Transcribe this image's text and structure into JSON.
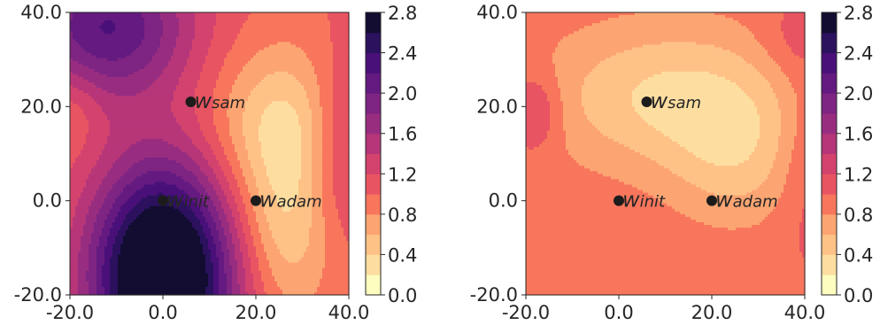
{
  "chart_data": [
    {
      "type": "contour",
      "title": "",
      "xlabel": "",
      "ylabel": "",
      "xlim": [
        -20,
        40
      ],
      "ylim": [
        -20,
        40
      ],
      "x_ticks": [
        "-20.0",
        "0.0",
        "20.0",
        "40.0"
      ],
      "y_ticks": [
        "-20.0",
        "0.0",
        "20.0",
        "40.0"
      ],
      "colormap": "magma_r",
      "colorbar": {
        "range": [
          0.0,
          2.8
        ],
        "levels": [
          0.0,
          0.2,
          0.4,
          0.6,
          0.8,
          1.0,
          1.2,
          1.4,
          1.6,
          1.8,
          2.0,
          2.2,
          2.4,
          2.6,
          2.8
        ],
        "tick_labels": [
          "0.0",
          "0.4",
          "0.8",
          "1.2",
          "1.6",
          "2.0",
          "2.4",
          "2.8"
        ]
      },
      "points": [
        {
          "label": "w",
          "subscript": "sam",
          "x": 6,
          "y": 21
        },
        {
          "label": "w",
          "subscript": "init",
          "x": 0,
          "y": 0
        },
        {
          "label": "w",
          "subscript": "adam",
          "x": 20,
          "y": 0
        }
      ],
      "surface": {
        "base": 1.0,
        "bumps": [
          {
            "x": 0,
            "y": -16,
            "sx": 11,
            "sy": 17,
            "a": 2.4
          },
          {
            "x": -12,
            "y": 37,
            "sx": 13,
            "sy": 11,
            "a": 1.2
          },
          {
            "x": 38,
            "y": 12,
            "sx": 5,
            "sy": 14,
            "a": 0.5
          },
          {
            "x": 26,
            "y": 16,
            "sx": 11,
            "sy": 12,
            "a": -0.65
          },
          {
            "x": 26,
            "y": -7,
            "sx": 8,
            "sy": 13,
            "a": -0.55
          },
          {
            "x": -19,
            "y": 20,
            "sx": 4,
            "sy": 6,
            "a": -0.2
          }
        ]
      }
    },
    {
      "type": "contour",
      "title": "",
      "xlabel": "",
      "ylabel": "",
      "xlim": [
        -20,
        40
      ],
      "ylim": [
        -20,
        40
      ],
      "x_ticks": [
        "-20.0",
        "0.0",
        "20.0",
        "40.0"
      ],
      "y_ticks": [
        "-20.0",
        "0.0",
        "20.0",
        "40.0"
      ],
      "colormap": "magma_r",
      "colorbar": {
        "range": [
          0.0,
          2.8
        ],
        "levels": [
          0.0,
          0.2,
          0.4,
          0.6,
          0.8,
          1.0,
          1.2,
          1.4,
          1.6,
          1.8,
          2.0,
          2.2,
          2.4,
          2.6,
          2.8
        ],
        "tick_labels": [
          "0.0",
          "0.4",
          "0.8",
          "1.2",
          "1.6",
          "2.0",
          "2.4",
          "2.8"
        ]
      },
      "points": [
        {
          "label": "w",
          "subscript": "sam",
          "x": 6,
          "y": 21
        },
        {
          "label": "w",
          "subscript": "init",
          "x": 0,
          "y": 0
        },
        {
          "label": "w",
          "subscript": "adam",
          "x": 20,
          "y": 0
        }
      ],
      "surface": {
        "base": 0.95,
        "bumps": [
          {
            "x": 12,
            "y": 22,
            "sx": 20,
            "sy": 11,
            "a": -0.6
          },
          {
            "x": 25,
            "y": 8,
            "sx": 10,
            "sy": 10,
            "a": -0.35
          },
          {
            "x": -18,
            "y": 19,
            "sx": 4,
            "sy": 6,
            "a": 0.4
          },
          {
            "x": 38,
            "y": 34,
            "sx": 6,
            "sy": 6,
            "a": 0.2
          },
          {
            "x": 40,
            "y": 10,
            "sx": 4,
            "sy": 15,
            "a": 0.2
          }
        ]
      }
    }
  ]
}
